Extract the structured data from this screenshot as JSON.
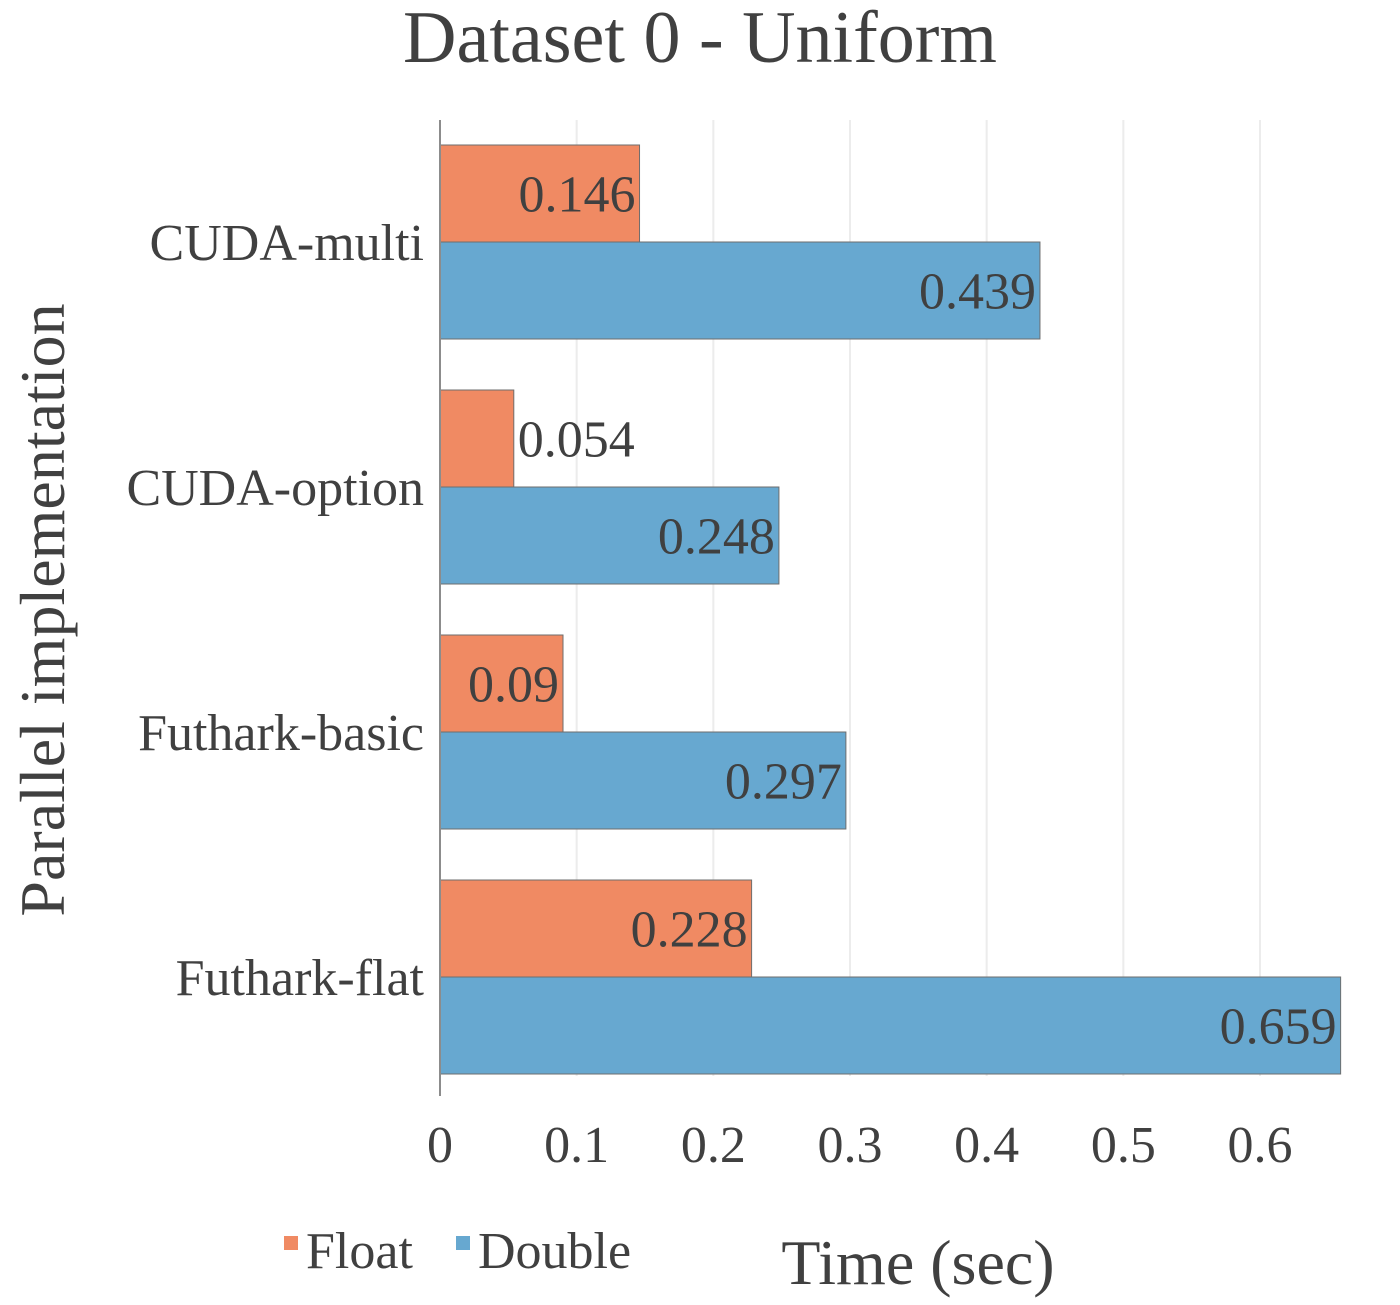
{
  "chart_data": {
    "type": "bar",
    "orientation": "horizontal",
    "title": "Dataset 0 - Uniform",
    "xlabel": "Time (sec)",
    "ylabel": "Parallel implementation",
    "categories": [
      "CUDA-multi",
      "CUDA-option",
      "Futhark-basic",
      "Futhark-flat"
    ],
    "series": [
      {
        "name": "Float",
        "color": "#f08a63",
        "values": [
          0.146,
          0.054,
          0.09,
          0.228
        ],
        "labels": [
          "0.146",
          "0.054",
          "0.09",
          "0.228"
        ]
      },
      {
        "name": "Double",
        "color": "#67a8d0",
        "values": [
          0.439,
          0.248,
          0.297,
          0.659
        ],
        "labels": [
          "0.439",
          "0.248",
          "0.297",
          "0.659"
        ]
      }
    ],
    "xlim": [
      0,
      0.66
    ],
    "xticks": [
      "0",
      "0.1",
      "0.2",
      "0.3",
      "0.4",
      "0.5",
      "0.6"
    ],
    "grid": true,
    "legend_position": "bottom-left"
  }
}
